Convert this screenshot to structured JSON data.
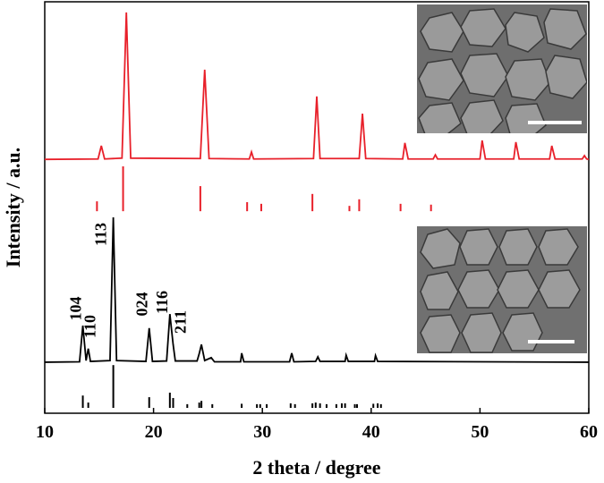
{
  "chart_data": {
    "type": "xrd",
    "xlabel": "2 theta / degree",
    "ylabel": "Intensity / a.u.",
    "xlim": [
      10,
      60
    ],
    "xticks": [
      10,
      20,
      30,
      40,
      50,
      60
    ],
    "ylim": [
      0,
      100
    ],
    "series": [
      {
        "kind": "line",
        "color": "#e8202a",
        "x": [
          10,
          14.9,
          15.2,
          15.5,
          17.1,
          17.5,
          17.9,
          24.3,
          24.7,
          25.1,
          28.8,
          29.0,
          29.2,
          34.7,
          35.0,
          35.3,
          38.9,
          39.2,
          39.5,
          42.9,
          43.1,
          43.4,
          45.7,
          45.9,
          46.1,
          50.0,
          50.2,
          50.5,
          53.1,
          53.3,
          53.6,
          56.4,
          56.6,
          56.9,
          59.4,
          59.6,
          59.8,
          60
        ],
        "values": [
          61.7,
          61.8,
          65,
          61.8,
          62,
          97.4,
          62,
          61.9,
          83.5,
          61.9,
          61.8,
          63.5,
          61.8,
          61.9,
          77,
          61.9,
          61.9,
          72.8,
          61.9,
          61.8,
          65.7,
          61.8,
          61.8,
          62.8,
          61.8,
          61.8,
          66.3,
          61.8,
          61.8,
          65.9,
          61.8,
          61.8,
          65,
          61.8,
          61.8,
          62.6,
          61.8,
          61.7
        ]
      },
      {
        "kind": "stick",
        "color": "#e8202a",
        "baseline": 49.1,
        "x": [
          14.8,
          17.2,
          24.3,
          28.6,
          29.9,
          34.6,
          38.0,
          38.9,
          42.7,
          45.5
        ],
        "values": [
          51.5,
          60,
          55.2,
          51.3,
          50.9,
          53.3,
          50.4,
          52,
          50.9,
          50.7
        ]
      },
      {
        "kind": "line",
        "color": "#000000",
        "x": [
          10,
          13.2,
          13.5,
          13.8,
          14.0,
          14.2,
          16.0,
          16.3,
          16.6,
          19.3,
          19.6,
          19.9,
          21.2,
          21.5,
          21.8,
          22.0,
          24.0,
          24.2,
          24.4,
          24.7,
          25.3,
          25.6,
          28.0,
          28.1,
          28.3,
          32.5,
          32.7,
          32.9,
          34.9,
          35.1,
          35.3,
          37.6,
          37.7,
          37.9,
          40.3,
          40.4,
          40.6,
          60
        ],
        "values": [
          12.4,
          12.5,
          21.3,
          12.8,
          15.7,
          12.6,
          12.8,
          47.6,
          12.8,
          12.6,
          20.7,
          12.6,
          12.7,
          24.1,
          16.7,
          12.7,
          12.7,
          14.5,
          16.7,
          12.8,
          13.5,
          12.5,
          12.5,
          14.6,
          12.5,
          12.5,
          14.6,
          12.5,
          12.6,
          13.7,
          12.6,
          12.6,
          14.1,
          12.6,
          12.6,
          14,
          12.6,
          12.4
        ]
      },
      {
        "kind": "stick",
        "color": "#000000",
        "baseline": 1.3,
        "x": [
          13.5,
          14.0,
          16.3,
          19.6,
          21.5,
          21.8,
          23.1,
          24.2,
          24.4,
          25.4,
          28.1,
          29.5,
          29.8,
          30.4,
          32.6,
          33.0,
          34.6,
          34.9,
          35.3,
          35.9,
          36.8,
          37.3,
          37.6,
          38.5,
          38.7,
          40.2,
          40.6,
          40.9
        ],
        "values": [
          4.3,
          2.6,
          11.7,
          3.9,
          5,
          3.7,
          2.2,
          2.6,
          3,
          2.2,
          2.3,
          2.2,
          2.2,
          2.2,
          2.4,
          2.2,
          2.4,
          2.6,
          2.4,
          2.2,
          2.2,
          2.4,
          2.4,
          2.2,
          2.2,
          2.3,
          2.4,
          2.2
        ]
      }
    ],
    "annotations": [
      {
        "text": "104",
        "x": 13.5
      },
      {
        "text": "110",
        "x": 14.0
      },
      {
        "text": "113",
        "x": 16.3
      },
      {
        "text": "024",
        "x": 19.6
      },
      {
        "text": "116",
        "x": 21.5
      },
      {
        "text": "211",
        "x": 21.8
      }
    ]
  }
}
